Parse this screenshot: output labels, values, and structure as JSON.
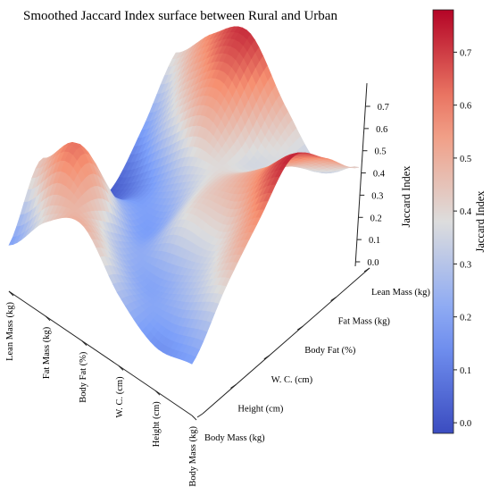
{
  "chart_data": {
    "type": "surface",
    "title": "Smoothed Jaccard Index surface between Rural and Urban",
    "x_axis": {
      "categories": [
        "Body Mass (kg)",
        "Height (cm)",
        "W. C. (cm)",
        "Body Fat (%)",
        "Fat Mass (kg)",
        "Lean Mass (kg)"
      ]
    },
    "y_axis": {
      "categories": [
        "Body Mass (kg)",
        "Height (cm)",
        "W. C. (cm)",
        "Body Fat (%)",
        "Fat Mass (kg)",
        "Lean Mass (kg)"
      ]
    },
    "z_axis": {
      "label": "Jaccard Index",
      "ticks": [
        0.0,
        0.1,
        0.2,
        0.3,
        0.4,
        0.5,
        0.6,
        0.7
      ],
      "range": [
        -0.02,
        0.78
      ]
    },
    "colorbar": {
      "label": "Jaccard Index",
      "ticks": [
        0.0,
        0.1,
        0.2,
        0.3,
        0.4,
        0.5,
        0.6,
        0.7
      ],
      "range": [
        -0.02,
        0.78
      ],
      "colormap": "coolwarm"
    },
    "grid": [
      [
        0.18,
        0.4,
        0.58,
        0.74,
        0.6,
        0.42
      ],
      [
        0.15,
        0.28,
        0.4,
        0.55,
        0.45,
        0.3
      ],
      [
        0.28,
        0.2,
        0.38,
        0.42,
        0.36,
        0.48
      ],
      [
        0.5,
        0.3,
        0.18,
        0.3,
        0.55,
        0.72
      ],
      [
        0.4,
        0.62,
        0.25,
        0.15,
        0.4,
        0.6
      ],
      [
        0.18,
        0.45,
        0.1,
        0.02,
        0.18,
        0.4
      ]
    ]
  }
}
